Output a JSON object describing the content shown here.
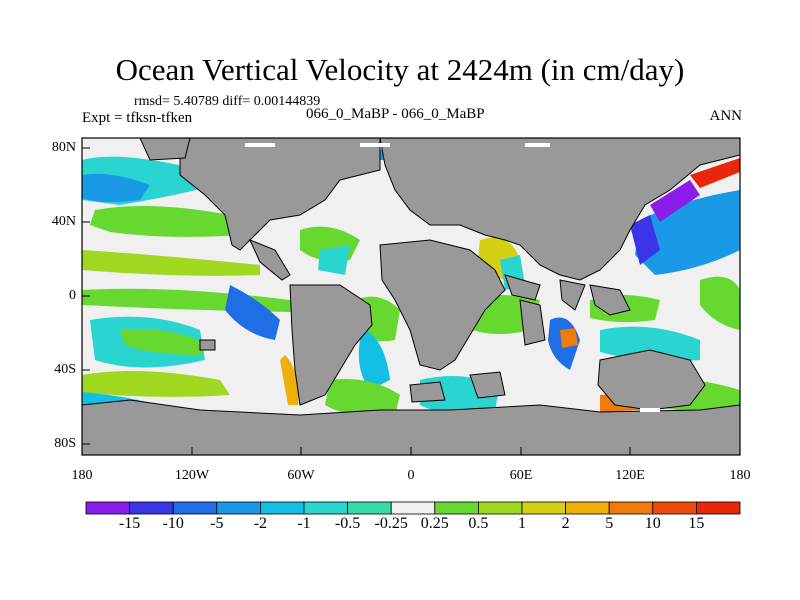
{
  "title": "Ocean Vertical Velocity at 2424m (in cm/day)",
  "stats_text": "rmsd= 5.40789 diff= 0.00144839",
  "experiment": "Expt = tfksn-tfken",
  "case_label": "066_0_MaBP - 066_0_MaBP",
  "season": "ANN",
  "lat_ticks": [
    "80N",
    "40N",
    "0",
    "40S",
    "80S"
  ],
  "lon_ticks": [
    "180",
    "120W",
    "60W",
    "0",
    "60E",
    "120E",
    "180"
  ],
  "colorbar": {
    "labels": [
      "-15",
      "-10",
      "-5",
      "-2",
      "-1",
      "-0.5",
      "-0.25",
      "0.25",
      "0.5",
      "1",
      "2",
      "5",
      "10",
      "15"
    ],
    "colors": [
      "#8a1de8",
      "#3a35e6",
      "#1e6ee6",
      "#1a9ae6",
      "#14bfe6",
      "#2ad4d0",
      "#36dca8",
      "#f0f0f0",
      "#66d830",
      "#a0d820",
      "#d4d014",
      "#f0b00c",
      "#f07a0a",
      "#ef4a0a",
      "#e8260a"
    ]
  },
  "colors": {
    "land": "#999999",
    "no_data": "#f0f0f0"
  }
}
